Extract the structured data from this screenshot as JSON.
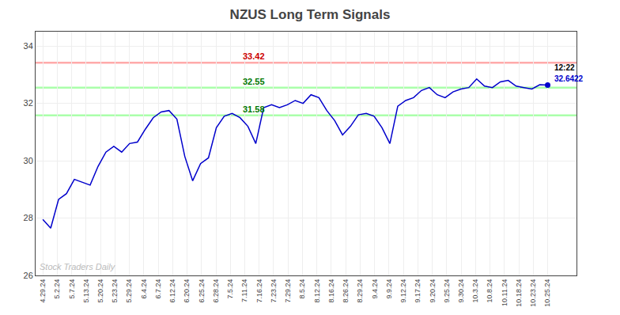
{
  "chart_data": {
    "type": "line",
    "title": "NZUS Long Term Signals",
    "color": "#0000cc",
    "x": [
      0,
      0.546875,
      1.09375,
      1.640625,
      2.1875,
      2.734375,
      3.28125,
      3.828125,
      4.375,
      4.921875,
      5.46875,
      6.015625,
      6.5625,
      7.109375,
      7.65625,
      8.203125,
      8.75,
      9.296875,
      9.84375,
      10.390625,
      10.9375,
      11.484375,
      12.03125,
      12.578125,
      13.125,
      13.671875,
      14.21875,
      14.765625,
      15.3125,
      15.859375,
      16.40625,
      16.953125,
      17.5,
      18.046875,
      18.59375,
      19.140625,
      19.6875,
      20.234375,
      20.78125,
      21.328125,
      21.875,
      22.421875,
      22.96875,
      23.515625,
      24.0625,
      24.609375,
      25.15625,
      25.703125,
      26.25,
      26.796875,
      27.34375,
      27.890625,
      28.4375,
      28.984375,
      29.53125,
      30.078125,
      30.625,
      31.171875,
      31.71875,
      32.265625,
      32.8125,
      33.359375,
      33.90625,
      34.453125,
      35
    ],
    "values": [
      27.95,
      27.65,
      28.65,
      28.85,
      29.35,
      29.25,
      29.15,
      29.8,
      30.3,
      30.5,
      30.3,
      30.6,
      30.65,
      31.1,
      31.5,
      31.7,
      31.75,
      31.45,
      30.15,
      29.3,
      29.9,
      30.1,
      31.15,
      31.55,
      31.65,
      31.5,
      31.2,
      30.6,
      31.85,
      31.95,
      31.85,
      31.95,
      32.1,
      32.0,
      32.3,
      32.2,
      31.75,
      31.4,
      30.9,
      31.2,
      31.6,
      31.65,
      31.55,
      31.15,
      30.6,
      31.9,
      32.1,
      32.2,
      32.45,
      32.55,
      32.3,
      32.2,
      32.4,
      32.5,
      32.55,
      32.85,
      32.6,
      32.55,
      32.75,
      32.8,
      32.6,
      32.55,
      32.5,
      32.65,
      32.64
    ],
    "xlim": [
      -0.5,
      37
    ],
    "xticks": [
      {
        "value": 0,
        "label": "4.29.24"
      },
      {
        "value": 1,
        "label": "5.2.24"
      },
      {
        "value": 2,
        "label": "5.7.24"
      },
      {
        "value": 3,
        "label": "5.13.24"
      },
      {
        "value": 4,
        "label": "5.20.24"
      },
      {
        "value": 5,
        "label": "5.23.24"
      },
      {
        "value": 6,
        "label": "5.29.24"
      },
      {
        "value": 7,
        "label": "6.4.24"
      },
      {
        "value": 8,
        "label": "6.7.24"
      },
      {
        "value": 9,
        "label": "6.12.24"
      },
      {
        "value": 10,
        "label": "6.20.24"
      },
      {
        "value": 11,
        "label": "6.25.24"
      },
      {
        "value": 12,
        "label": "6.28.24"
      },
      {
        "value": 13,
        "label": "7.5.24"
      },
      {
        "value": 14,
        "label": "7.11.24"
      },
      {
        "value": 15,
        "label": "7.16.24"
      },
      {
        "value": 16,
        "label": "7.23.24"
      },
      {
        "value": 17,
        "label": "7.29.24"
      },
      {
        "value": 18,
        "label": "8.5.24"
      },
      {
        "value": 19,
        "label": "8.12.24"
      },
      {
        "value": 20,
        "label": "8.16.24"
      },
      {
        "value": 21,
        "label": "8.26.24"
      },
      {
        "value": 22,
        "label": "8.29.24"
      },
      {
        "value": 23,
        "label": "9.4.24"
      },
      {
        "value": 24,
        "label": "9.9.24"
      },
      {
        "value": 25,
        "label": "9.12.24"
      },
      {
        "value": 26,
        "label": "9.17.24"
      },
      {
        "value": 27,
        "label": "9.20.24"
      },
      {
        "value": 28,
        "label": "9.25.24"
      },
      {
        "value": 29,
        "label": "9.30.24"
      },
      {
        "value": 30,
        "label": "10.3.24"
      },
      {
        "value": 31,
        "label": "10.8.24"
      },
      {
        "value": 32,
        "label": "10.11.24"
      },
      {
        "value": 33,
        "label": "10.18.24"
      },
      {
        "value": 34,
        "label": "10.23.24"
      },
      {
        "value": 35,
        "label": "10.25.24"
      }
    ],
    "ylim": [
      26,
      34.5
    ],
    "yticks": [
      26,
      28,
      30,
      32,
      34
    ],
    "grid": true,
    "hlines": [
      {
        "value": 33.42,
        "label": "33.42",
        "color": "#ffaaaa",
        "label_color": "#cc0000"
      },
      {
        "value": 32.55,
        "label": "32.55",
        "color": "#aaffaa",
        "label_color": "#007700"
      },
      {
        "value": 31.58,
        "label": "31.58",
        "color": "#aaffaa",
        "label_color": "#007700"
      }
    ],
    "annotations": [
      {
        "text": "12:22",
        "color": "#000000"
      },
      {
        "text": "32.6422",
        "value": 32.6422,
        "color": "#0000cc"
      }
    ],
    "watermark": {
      "text": "Stock Traders Daily",
      "color": "#bbbbbb"
    }
  }
}
